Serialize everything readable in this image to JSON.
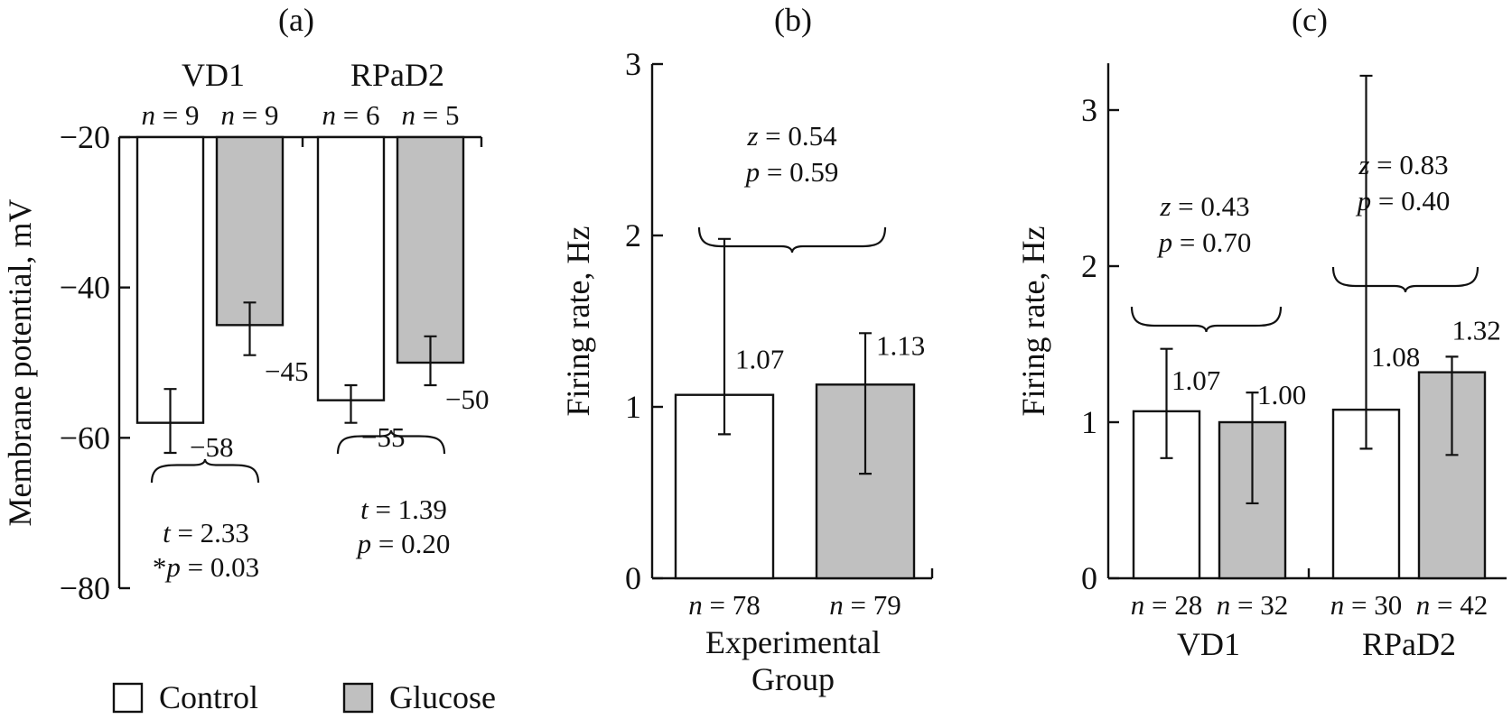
{
  "colors": {
    "control": "#ffffff",
    "glucose": "#c0c0c0",
    "ink": "#111111"
  },
  "legend": {
    "items": [
      {
        "label": "Control",
        "color": "#ffffff"
      },
      {
        "label": "Glucose",
        "color": "#c0c0c0"
      }
    ]
  },
  "chart_data": [
    {
      "id": "a",
      "panel_label": "(a)",
      "type": "bar",
      "ylabel": "Membrane potential, mV",
      "ylim": [
        -80,
        -20
      ],
      "yticks": [
        -20,
        -40,
        -60,
        -80
      ],
      "ytick_labels": [
        "−20",
        "−40",
        "−60",
        "−80"
      ],
      "groups": [
        {
          "label": "VD1"
        },
        {
          "label": "RPaD2"
        }
      ],
      "bars": [
        {
          "group": 0,
          "series": "Control",
          "value": -58,
          "err_low": -62,
          "err_high": -53.5,
          "label": "−58",
          "n_var": "n",
          "n_val": " = 9"
        },
        {
          "group": 0,
          "series": "Glucose",
          "value": -45,
          "err_low": -49,
          "err_high": -42,
          "label": "−45",
          "n_var": "n",
          "n_val": " = 9"
        },
        {
          "group": 1,
          "series": "Control",
          "value": -55,
          "err_low": -58,
          "err_high": -53,
          "label": "−55",
          "n_var": "n",
          "n_val": " = 6"
        },
        {
          "group": 1,
          "series": "Glucose",
          "value": -50,
          "err_low": -53,
          "err_high": -46.5,
          "label": "−50",
          "n_var": "n",
          "n_val": " = 5"
        }
      ],
      "comparisons": [
        {
          "bars": [
            0,
            1
          ],
          "lines": [
            {
              "var": "t",
              "val": " = 2.33"
            },
            {
              "prefix": "*",
              "var": "p",
              "val": " = 0.03"
            }
          ]
        },
        {
          "bars": [
            2,
            3
          ],
          "lines": [
            {
              "var": "t",
              "val": " = 1.39"
            },
            {
              "var": "p",
              "val": " = 0.20"
            }
          ]
        }
      ]
    },
    {
      "id": "b",
      "panel_label": "(b)",
      "type": "bar",
      "ylabel": "Firing rate, Hz",
      "xlabel_lines": [
        "Experimental",
        "Group"
      ],
      "ylim": [
        0,
        3
      ],
      "yticks": [
        0,
        1,
        2,
        3
      ],
      "ytick_labels": [
        "0",
        "1",
        "2",
        "3"
      ],
      "bars": [
        {
          "series": "Control",
          "value": 1.07,
          "err_low": 0.84,
          "err_high": 1.98,
          "label": "1.07",
          "n_var": "n",
          "n_val": " = 78"
        },
        {
          "series": "Glucose",
          "value": 1.13,
          "err_low": 0.61,
          "err_high": 1.43,
          "label": "1.13",
          "n_var": "n",
          "n_val": " = 79"
        }
      ],
      "comparisons": [
        {
          "bars": [
            0,
            1
          ],
          "lines": [
            {
              "var": "z",
              "val": " = 0.54"
            },
            {
              "var": "p",
              "val": " = 0.59"
            }
          ]
        }
      ]
    },
    {
      "id": "c",
      "panel_label": "(c)",
      "type": "bar",
      "ylabel": "Firing rate, Hz",
      "ylim": [
        0,
        3.3
      ],
      "yticks": [
        0,
        1,
        2,
        3
      ],
      "ytick_labels": [
        "0",
        "1",
        "2",
        "3"
      ],
      "groups": [
        {
          "label": "VD1"
        },
        {
          "label": "RPaD2"
        }
      ],
      "bars": [
        {
          "group": 0,
          "series": "Control",
          "value": 1.07,
          "err_low": 0.77,
          "err_high": 1.47,
          "label": "1.07",
          "n_var": "n",
          "n_val": " = 28"
        },
        {
          "group": 0,
          "series": "Glucose",
          "value": 1.0,
          "err_low": 0.48,
          "err_high": 1.19,
          "label": "1.00",
          "n_var": "n",
          "n_val": " = 32"
        },
        {
          "group": 1,
          "series": "Control",
          "value": 1.08,
          "err_low": 0.83,
          "err_high": 3.22,
          "label": "1.08",
          "n_var": "n",
          "n_val": " = 30"
        },
        {
          "group": 1,
          "series": "Glucose",
          "value": 1.32,
          "err_low": 0.79,
          "err_high": 1.42,
          "label": "1.32",
          "n_var": "n",
          "n_val": " = 42"
        }
      ],
      "comparisons": [
        {
          "bars": [
            0,
            1
          ],
          "lines": [
            {
              "var": "z",
              "val": " = 0.43"
            },
            {
              "var": "p",
              "val": " = 0.70"
            }
          ]
        },
        {
          "bars": [
            2,
            3
          ],
          "lines": [
            {
              "var": "z",
              "val": " = 0.83"
            },
            {
              "var": "p",
              "val": " = 0.40"
            }
          ]
        }
      ]
    }
  ]
}
